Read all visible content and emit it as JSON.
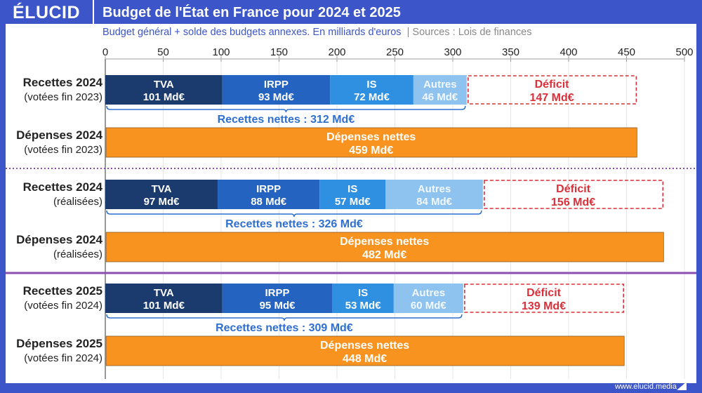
{
  "header": {
    "logo": "ÉLUCID",
    "title": "Budget de l'État en France pour 2024 et 2025"
  },
  "subtitle": "Budget général + solde des budgets annexes. En milliards d'euros",
  "sources": "|  Sources : Lois de finances",
  "footer": "www.elucid.media",
  "colors": {
    "frame": "#3c55c8",
    "TVA": "#1b3a6e",
    "IRPP": "#2563c0",
    "IS": "#2f8fe0",
    "Autres": "#8fc3ef",
    "depenses": "#f7931e",
    "deficit": "#d9303a",
    "brace": "#2f6fd0",
    "divider": "#8a4fb0"
  },
  "chart_data": {
    "type": "bar",
    "orientation": "horizontal",
    "stacked": true,
    "xlim": [
      0,
      500
    ],
    "xticks": [
      "0",
      "50",
      "100",
      "150",
      "200",
      "250",
      "300",
      "350",
      "400",
      "450",
      "500"
    ],
    "grid": true,
    "unit": "Md€",
    "groups": [
      {
        "recettes_label": "Recettes 2024",
        "recettes_sub": "(votées fin 2023)",
        "depenses_label": "Dépenses 2024",
        "depenses_sub": "(votées fin 2023)",
        "segments": [
          {
            "name": "TVA",
            "value": 101
          },
          {
            "name": "IRPP",
            "value": 93
          },
          {
            "name": "IS",
            "value": 72
          },
          {
            "name": "Autres",
            "value": 46
          }
        ],
        "net_label": "Recettes nettes : 312 Md€",
        "net": 312,
        "deficit_name": "Déficit",
        "deficit": 147,
        "depenses_name": "Dépenses nettes",
        "depenses": 459
      },
      {
        "recettes_label": "Recettes 2024",
        "recettes_sub": "(réalisées)",
        "depenses_label": "Dépenses 2024",
        "depenses_sub": "(réalisées)",
        "segments": [
          {
            "name": "TVA",
            "value": 97
          },
          {
            "name": "IRPP",
            "value": 88
          },
          {
            "name": "IS",
            "value": 57
          },
          {
            "name": "Autres",
            "value": 84
          }
        ],
        "net_label": "Recettes nettes : 326 Md€",
        "net": 326,
        "deficit_name": "Déficit",
        "deficit": 156,
        "depenses_name": "Dépenses nettes",
        "depenses": 482
      },
      {
        "recettes_label": "Recettes 2025",
        "recettes_sub": "(votées fin 2024)",
        "depenses_label": "Dépenses 2025",
        "depenses_sub": "(votées fin 2024)",
        "segments": [
          {
            "name": "TVA",
            "value": 101
          },
          {
            "name": "IRPP",
            "value": 95
          },
          {
            "name": "IS",
            "value": 53
          },
          {
            "name": "Autres",
            "value": 60
          }
        ],
        "net_label": "Recettes nettes : 309 Md€",
        "net": 309,
        "deficit_name": "Déficit",
        "deficit": 139,
        "depenses_name": "Dépenses nettes",
        "depenses": 448
      }
    ]
  }
}
